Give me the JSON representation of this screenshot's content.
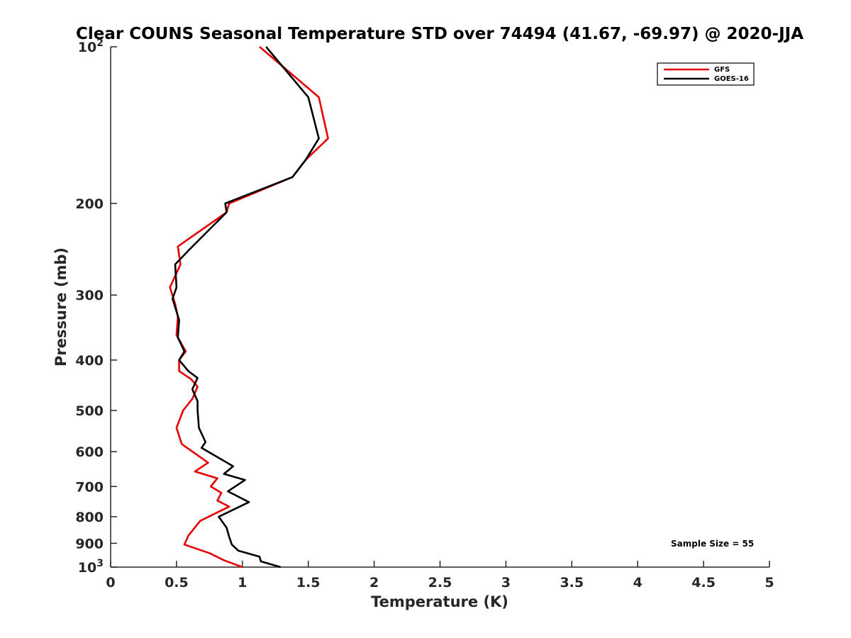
{
  "chart_data": {
    "type": "line",
    "title": "Clear COUNS Seasonal Temperature STD over 74494 (41.67, -69.97) @ 2020-JJA",
    "xlabel": "Temperature (K)",
    "ylabel": "Pressure (mb)",
    "xlim": [
      0,
      5
    ],
    "ylim": [
      100,
      1000
    ],
    "y_scale": "log",
    "y_reversed": true,
    "x_ticks": [
      "0",
      "0.5",
      "1",
      "1.5",
      "2",
      "2.5",
      "3",
      "3.5",
      "4",
      "4.5",
      "5"
    ],
    "y_ticks": [
      {
        "value": 100,
        "base": "10",
        "exp": "2"
      },
      {
        "value": 200,
        "label": "200"
      },
      {
        "value": 300,
        "label": "300"
      },
      {
        "value": 400,
        "label": "400"
      },
      {
        "value": 500,
        "label": "500"
      },
      {
        "value": 600,
        "label": "600"
      },
      {
        "value": 700,
        "label": "700"
      },
      {
        "value": 800,
        "label": "800"
      },
      {
        "value": 900,
        "label": "900"
      },
      {
        "value": 1000,
        "base": "10",
        "exp": "3"
      }
    ],
    "legend_position": "top-right",
    "annotation": "Sample Size = 55",
    "series": [
      {
        "name": "GFS",
        "color": "#e60000",
        "points": [
          [
            1.13,
            100
          ],
          [
            1.58,
            125
          ],
          [
            1.65,
            150
          ],
          [
            1.48,
            165
          ],
          [
            1.38,
            178
          ],
          [
            0.9,
            200
          ],
          [
            0.88,
            208
          ],
          [
            0.51,
            242
          ],
          [
            0.53,
            262
          ],
          [
            0.45,
            290
          ],
          [
            0.49,
            312
          ],
          [
            0.51,
            330
          ],
          [
            0.5,
            358
          ],
          [
            0.57,
            385
          ],
          [
            0.52,
            400
          ],
          [
            0.52,
            420
          ],
          [
            0.61,
            435
          ],
          [
            0.66,
            450
          ],
          [
            0.62,
            475
          ],
          [
            0.55,
            500
          ],
          [
            0.5,
            540
          ],
          [
            0.54,
            580
          ],
          [
            0.74,
            630
          ],
          [
            0.64,
            655
          ],
          [
            0.81,
            675
          ],
          [
            0.76,
            700
          ],
          [
            0.84,
            720
          ],
          [
            0.81,
            745
          ],
          [
            0.9,
            765
          ],
          [
            0.68,
            815
          ],
          [
            0.59,
            870
          ],
          [
            0.56,
            905
          ],
          [
            0.75,
            940
          ],
          [
            0.86,
            970
          ],
          [
            1.0,
            1000
          ]
        ]
      },
      {
        "name": "GOES-16",
        "color": "#000000",
        "points": [
          [
            1.18,
            100
          ],
          [
            1.5,
            125
          ],
          [
            1.58,
            150
          ],
          [
            1.48,
            165
          ],
          [
            1.38,
            178
          ],
          [
            0.87,
            200
          ],
          [
            0.88,
            208
          ],
          [
            0.6,
            245
          ],
          [
            0.49,
            262
          ],
          [
            0.5,
            290
          ],
          [
            0.47,
            305
          ],
          [
            0.52,
            335
          ],
          [
            0.51,
            362
          ],
          [
            0.56,
            385
          ],
          [
            0.52,
            400
          ],
          [
            0.59,
            420
          ],
          [
            0.66,
            433
          ],
          [
            0.62,
            455
          ],
          [
            0.66,
            480
          ],
          [
            0.66,
            500
          ],
          [
            0.67,
            540
          ],
          [
            0.72,
            575
          ],
          [
            0.69,
            590
          ],
          [
            0.93,
            640
          ],
          [
            0.86,
            662
          ],
          [
            1.02,
            680
          ],
          [
            0.89,
            715
          ],
          [
            1.05,
            750
          ],
          [
            0.82,
            800
          ],
          [
            0.88,
            840
          ],
          [
            0.9,
            875
          ],
          [
            0.92,
            905
          ],
          [
            0.97,
            930
          ],
          [
            1.13,
            955
          ],
          [
            1.14,
            975
          ],
          [
            1.29,
            1000
          ]
        ]
      }
    ]
  }
}
